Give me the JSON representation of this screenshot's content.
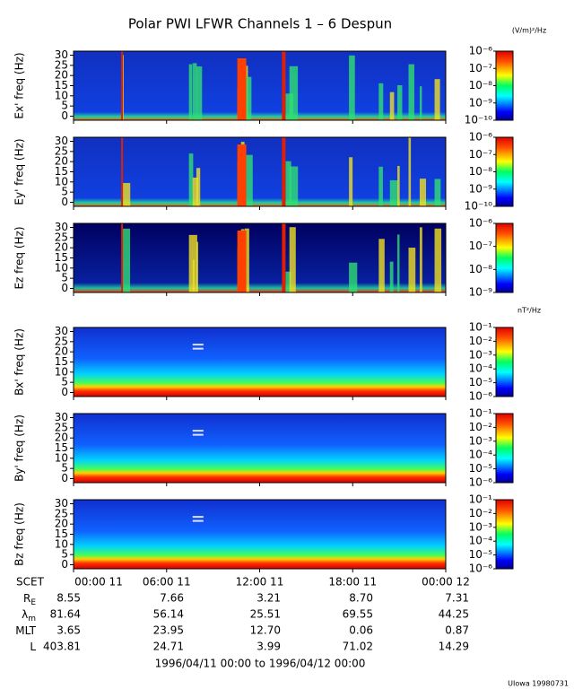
{
  "title": "Polar PWI LFWR Channels 1 – 6 Despun",
  "units": [
    "(V/m)²/Hz",
    "nT²/Hz"
  ],
  "chart_data": [
    {
      "type": "spectrogram",
      "ylabel": "Ex' freq (Hz)",
      "kind": "E",
      "ylim": [
        -2,
        32
      ],
      "yticks": [
        0,
        5,
        10,
        15,
        20,
        25,
        30
      ],
      "clog": true,
      "clim": [
        1e-10,
        1e-06
      ],
      "cticks": [
        {
          "value": 1e-06,
          "label": "10⁻⁶"
        },
        {
          "value": 1e-07,
          "label": "10⁻⁷"
        },
        {
          "value": 1e-08,
          "label": "10⁻⁸"
        },
        {
          "value": 1e-09,
          "label": "10⁻⁹"
        },
        {
          "value": 1e-10,
          "label": "10⁻¹⁰"
        }
      ]
    },
    {
      "type": "spectrogram",
      "ylabel": "Ey' freq (Hz)",
      "kind": "E",
      "ylim": [
        -2,
        32
      ],
      "yticks": [
        0,
        5,
        10,
        15,
        20,
        25,
        30
      ],
      "clog": true,
      "clim": [
        1e-10,
        1e-06
      ],
      "cticks": [
        {
          "value": 1e-06,
          "label": "10⁻⁶"
        },
        {
          "value": 1e-07,
          "label": "10⁻⁷"
        },
        {
          "value": 1e-08,
          "label": "10⁻⁸"
        },
        {
          "value": 1e-09,
          "label": "10⁻⁹"
        },
        {
          "value": 1e-10,
          "label": "10⁻¹⁰"
        }
      ]
    },
    {
      "type": "spectrogram",
      "ylabel": "Ez freq (Hz)",
      "kind": "Ez",
      "ylim": [
        -2,
        32
      ],
      "yticks": [
        0,
        5,
        10,
        15,
        20,
        25,
        30
      ],
      "clog": true,
      "clim": [
        1e-09,
        1e-06
      ],
      "cticks": [
        {
          "value": 1e-06,
          "label": "10⁻⁶"
        },
        {
          "value": 1e-07,
          "label": "10⁻⁷"
        },
        {
          "value": 1e-08,
          "label": "10⁻⁸"
        },
        {
          "value": 1e-09,
          "label": "10⁻⁹"
        }
      ]
    },
    {
      "type": "spectrogram",
      "ylabel": "Bx' freq (Hz)",
      "kind": "B",
      "ylim": [
        -2,
        32
      ],
      "yticks": [
        0,
        5,
        10,
        15,
        20,
        25,
        30
      ],
      "clog": true,
      "clim": [
        1e-06,
        0.1
      ],
      "cticks": [
        {
          "value": 0.1,
          "label": "10⁻¹"
        },
        {
          "value": 0.01,
          "label": "10⁻²"
        },
        {
          "value": 0.001,
          "label": "10⁻³"
        },
        {
          "value": 0.0001,
          "label": "10⁻⁴"
        },
        {
          "value": 1e-05,
          "label": "10⁻⁵"
        },
        {
          "value": 1e-06,
          "label": "10⁻⁶"
        }
      ]
    },
    {
      "type": "spectrogram",
      "ylabel": "By' freq (Hz)",
      "kind": "B",
      "ylim": [
        -2,
        32
      ],
      "yticks": [
        0,
        5,
        10,
        15,
        20,
        25,
        30
      ],
      "clog": true,
      "clim": [
        1e-06,
        0.1
      ],
      "cticks": [
        {
          "value": 0.1,
          "label": "10⁻¹"
        },
        {
          "value": 0.01,
          "label": "10⁻²"
        },
        {
          "value": 0.001,
          "label": "10⁻³"
        },
        {
          "value": 0.0001,
          "label": "10⁻⁴"
        },
        {
          "value": 1e-05,
          "label": "10⁻⁵"
        },
        {
          "value": 1e-06,
          "label": "10⁻⁶"
        }
      ]
    },
    {
      "type": "spectrogram",
      "ylabel": "Bz freq (Hz)",
      "kind": "B",
      "ylim": [
        -2,
        32
      ],
      "yticks": [
        0,
        5,
        10,
        15,
        20,
        25,
        30
      ],
      "clog": true,
      "clim": [
        1e-06,
        0.1
      ],
      "cticks": [
        {
          "value": 0.1,
          "label": "10⁻¹"
        },
        {
          "value": 0.01,
          "label": "10⁻²"
        },
        {
          "value": 0.001,
          "label": "10⁻³"
        },
        {
          "value": 0.0001,
          "label": "10⁻⁴"
        },
        {
          "value": 1e-05,
          "label": "10⁻⁵"
        },
        {
          "value": 1e-06,
          "label": "10⁻⁶"
        }
      ]
    }
  ],
  "time_axis": {
    "label": "SCET",
    "labels": [
      "00:00 11",
      "06:00 11",
      "12:00 11",
      "18:00 11",
      "00:00 12"
    ]
  },
  "ephemeris": [
    {
      "name": "R",
      "sub": "E",
      "values": [
        "8.55",
        "7.66",
        "3.21",
        "8.70",
        "7.31"
      ]
    },
    {
      "name": "λ",
      "sub": "m",
      "values": [
        "81.64",
        "56.14",
        "25.51",
        "69.55",
        "44.25"
      ]
    },
    {
      "name": "MLT",
      "values": [
        "3.65",
        "23.95",
        "12.70",
        "0.06",
        "0.87"
      ]
    },
    {
      "name": "L",
      "values": [
        "403.81",
        "24.71",
        "3.99",
        "71.02",
        "14.29"
      ]
    }
  ],
  "date_range": "1996/04/11 00:00 to 1996/04/12 00:00",
  "footer": "UIowa 19980731"
}
